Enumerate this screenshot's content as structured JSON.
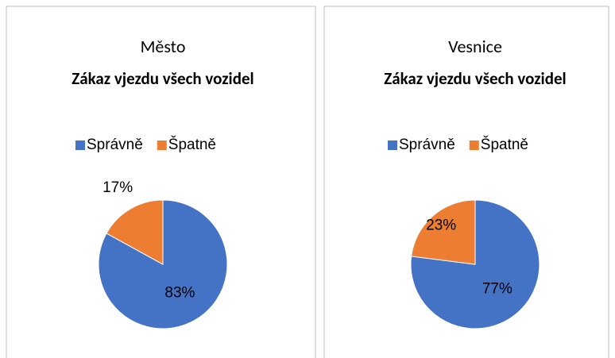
{
  "chart_data": [
    {
      "type": "pie",
      "title": "Město",
      "subtitle": "Zákaz vjezdu všech vozidel",
      "categories": [
        "Správně",
        "Špatně"
      ],
      "values": [
        83,
        17
      ],
      "value_labels": [
        "83%",
        "17%"
      ],
      "colors": [
        "#4472c4",
        "#ed7d31"
      ],
      "legend": "top"
    },
    {
      "type": "pie",
      "title": "Vesnice",
      "subtitle": "Zákaz vjezdu všech vozidel",
      "categories": [
        "Správně",
        "Špatně"
      ],
      "values": [
        77,
        23
      ],
      "value_labels": [
        "77%",
        "23%"
      ],
      "colors": [
        "#4472c4",
        "#ed7d31"
      ],
      "legend": "top"
    }
  ]
}
